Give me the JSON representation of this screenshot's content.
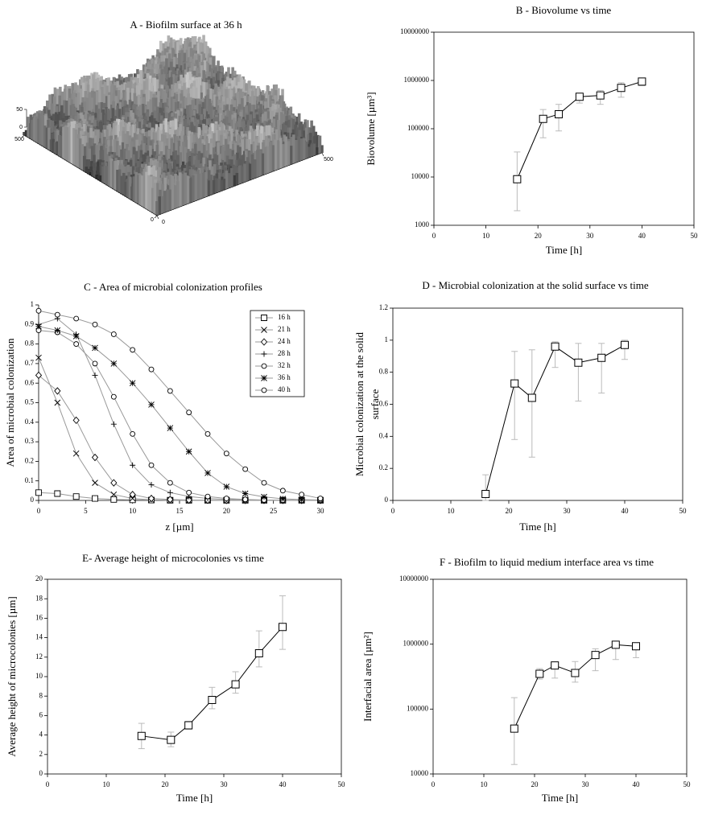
{
  "chart_data": [
    {
      "type": "surface",
      "title": "A - Biofilm surface at 36 h",
      "xlim": [
        0,
        500
      ],
      "xticks": [
        0,
        500
      ],
      "ylim": [
        0,
        500
      ],
      "yticks": [
        0,
        500
      ],
      "zlim": [
        0,
        50
      ],
      "zticks": [
        0,
        50
      ]
    },
    {
      "type": "line",
      "title": "B - Biovolume vs time",
      "xlabel": "Time [h]",
      "ylabel": "Biovolume [µm³]",
      "x": [
        16,
        21,
        24,
        28,
        32,
        36,
        40
      ],
      "values": [
        9000,
        160000,
        200000,
        460000,
        490000,
        700000,
        950000
      ],
      "err_low": [
        2000,
        65000,
        90000,
        340000,
        320000,
        450000,
        780000
      ],
      "err_high": [
        33000,
        250000,
        320000,
        520000,
        620000,
        900000,
        1000000
      ],
      "marker": "square",
      "color": "#000000",
      "error_color": "#bbbbbb",
      "frame": true,
      "xlim": [
        0,
        50
      ],
      "xticks": [
        0,
        10,
        20,
        30,
        40,
        50
      ],
      "yscale": "log",
      "ylim": [
        1000,
        10000000
      ],
      "yticks": [
        1000,
        10000,
        100000,
        1000000,
        10000000
      ]
    },
    {
      "type": "line",
      "title": "C - Area of microbial colonization profiles",
      "xlabel": "z [µm]",
      "ylabel": "Area of microbial colonization",
      "x": [
        0,
        2,
        4,
        6,
        8,
        10,
        12,
        14,
        16,
        18,
        20,
        22,
        24,
        26,
        28,
        30
      ],
      "series": [
        {
          "name": "16 h",
          "marker": "square",
          "color": "#999999",
          "values": [
            0.04,
            0.035,
            0.02,
            0.01,
            0.005,
            0.003,
            0.002,
            0.001,
            0.001,
            0.001,
            0.001,
            0.001,
            0.001,
            0.001,
            0.001,
            0.001
          ]
        },
        {
          "name": "21 h",
          "marker": "x",
          "color": "#999999",
          "values": [
            0.73,
            0.5,
            0.24,
            0.09,
            0.03,
            0.01,
            0.003,
            0.001,
            0,
            0,
            0,
            0,
            0,
            0,
            0,
            0
          ]
        },
        {
          "name": "24 h",
          "marker": "diamond",
          "color": "#999999",
          "values": [
            0.64,
            0.56,
            0.41,
            0.22,
            0.09,
            0.03,
            0.01,
            0.005,
            0.002,
            0.001,
            0,
            0,
            0,
            0,
            0,
            0
          ]
        },
        {
          "name": "28 h",
          "marker": "plus",
          "color": "#999999",
          "values": [
            0.9,
            0.93,
            0.85,
            0.64,
            0.39,
            0.18,
            0.08,
            0.04,
            0.02,
            0.01,
            0.005,
            0.002,
            0.001,
            0,
            0,
            0
          ]
        },
        {
          "name": "32 h",
          "marker": "circle",
          "color": "#999999",
          "values": [
            0.87,
            0.86,
            0.8,
            0.7,
            0.53,
            0.34,
            0.18,
            0.09,
            0.04,
            0.02,
            0.01,
            0.005,
            0.002,
            0.001,
            0,
            0
          ]
        },
        {
          "name": "36 h",
          "marker": "star",
          "color": "#999999",
          "values": [
            0.89,
            0.87,
            0.84,
            0.78,
            0.7,
            0.6,
            0.49,
            0.37,
            0.25,
            0.14,
            0.07,
            0.035,
            0.018,
            0.008,
            0.004,
            0.002
          ]
        },
        {
          "name": "40 h",
          "marker": "circle",
          "color": "#999999",
          "values": [
            0.97,
            0.95,
            0.93,
            0.9,
            0.85,
            0.77,
            0.67,
            0.56,
            0.45,
            0.34,
            0.24,
            0.16,
            0.09,
            0.05,
            0.03,
            0.01
          ]
        }
      ],
      "marker_color": "#000000",
      "frame": false,
      "legend": "upper right",
      "xlim": [
        0,
        30
      ],
      "xticks": [
        0,
        5,
        10,
        15,
        20,
        25,
        30
      ],
      "ylim": [
        0,
        1
      ],
      "yticks": [
        0,
        0.1,
        0.2,
        0.3,
        0.4,
        0.5,
        0.6,
        0.7,
        0.8,
        0.9,
        1
      ]
    },
    {
      "type": "line",
      "title": "D - Microbial colonization at the solid surface vs time",
      "xlabel": "Time [h]",
      "ylabel": [
        "Microbial colonization at the solid",
        "surface"
      ],
      "x": [
        16,
        21,
        24,
        28,
        32,
        36,
        40
      ],
      "values": [
        0.04,
        0.73,
        0.64,
        0.96,
        0.86,
        0.89,
        0.97
      ],
      "err_low": [
        0,
        0.38,
        0.27,
        0.83,
        0.62,
        0.67,
        0.88
      ],
      "err_high": [
        0.16,
        0.93,
        0.94,
        0.99,
        0.98,
        0.98,
        1
      ],
      "marker": "square",
      "color": "#000000",
      "error_color": "#bbbbbb",
      "frame": true,
      "xlim": [
        0,
        50
      ],
      "xticks": [
        0,
        10,
        20,
        30,
        40,
        50
      ],
      "ylim": [
        0,
        1.2
      ],
      "yticks": [
        0,
        0.2,
        0.4,
        0.6,
        0.8,
        1,
        1.2
      ]
    },
    {
      "type": "line",
      "title": "E- Average height of microcolonies vs time",
      "xlabel": "Time [h]",
      "ylabel": "Average height of microcolonies [µm]",
      "x": [
        16,
        21,
        24,
        28,
        32,
        36,
        40
      ],
      "values": [
        3.9,
        3.5,
        5.0,
        7.6,
        9.2,
        12.4,
        15.1
      ],
      "err_low": [
        2.6,
        2.8,
        4.6,
        6.7,
        8.3,
        11,
        12.8
      ],
      "err_high": [
        5.2,
        4.3,
        5.4,
        8.9,
        10.5,
        14.7,
        18.3
      ],
      "marker": "square",
      "color": "#000000",
      "error_color": "#bbbbbb",
      "frame": true,
      "xlim": [
        0,
        50
      ],
      "xticks": [
        0,
        10,
        20,
        30,
        40,
        50
      ],
      "ylim": [
        0,
        20
      ],
      "yticks": [
        0,
        2,
        4,
        6,
        8,
        10,
        12,
        14,
        16,
        18,
        20
      ]
    },
    {
      "type": "line",
      "title": "F - Biofilm to liquid medium interface area vs time",
      "xlabel": "Time [h]",
      "ylabel": "Interfacial area [µm²]",
      "x": [
        16,
        21,
        24,
        28,
        32,
        36,
        40
      ],
      "values": [
        50000,
        350000,
        470000,
        360000,
        680000,
        980000,
        930000
      ],
      "err_low": [
        14000,
        290000,
        300000,
        260000,
        390000,
        580000,
        620000
      ],
      "err_high": [
        150000,
        420000,
        520000,
        540000,
        850000,
        1100000,
        1000000
      ],
      "marker": "square",
      "color": "#000000",
      "error_color": "#bbbbbb",
      "frame": true,
      "xlim": [
        0,
        50
      ],
      "xticks": [
        0,
        10,
        20,
        30,
        40,
        50
      ],
      "yscale": "log",
      "ylim": [
        10000,
        10000000
      ],
      "yticks": [
        10000,
        100000,
        1000000,
        10000000
      ]
    }
  ]
}
